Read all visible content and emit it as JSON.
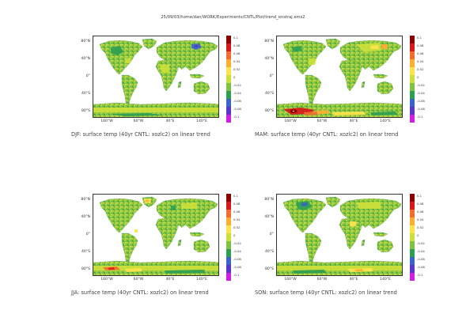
{
  "header": "25/09/03/home/dan/WORK/Experiments/CNTL/Plot/trend_onstraj.ems2",
  "y_ticks": [
    "80°N",
    "40°N",
    "0°",
    "40°S",
    "80°S"
  ],
  "x_ticks": [
    "160°W",
    "60°W",
    "40°E",
    "140°E"
  ],
  "colorbar": {
    "labels": [
      "0.1",
      "0.08",
      "0.06",
      "0.04",
      "0.02",
      "0",
      "-0.02",
      "-0.04",
      "-0.06",
      "-0.08",
      "-0.1"
    ],
    "colors": [
      "#8b0000",
      "#d7191c",
      "#f46d2e",
      "#fdae33",
      "#ffe34d",
      "#ccdf3a",
      "#7fc241",
      "#2e9f52",
      "#3a64c8",
      "#5a35c9",
      "#d11fe0"
    ]
  },
  "colors": {
    "land_dominant": "#7fc241",
    "land_light": "#ccdf3a",
    "ocean": "#ffffff"
  },
  "chart_data": [
    {
      "type": "heatmap",
      "caption": "DJF: surface temp (40yr CNTL: xozlc2) on linear trend",
      "units": "",
      "range": [
        -0.1,
        0.1
      ],
      "dominant_values": [
        0,
        -0.02
      ],
      "notable": "cooling (-0.04 to -0.06) over northern Eurasia and western Canada"
    },
    {
      "type": "heatmap",
      "caption": "MAM: surface temp (40yr CNTL: xozlc2) on linear trend",
      "units": "",
      "range": [
        -0.1,
        0.1
      ],
      "dominant_values": [
        0,
        -0.02
      ],
      "notable": "strong warming (0.04 to 0.1) over western Antarctica"
    },
    {
      "type": "heatmap",
      "caption": "JJA: surface temp (40yr CNTL: xozlc2) on linear trend",
      "units": "",
      "range": [
        -0.1,
        0.1
      ],
      "dominant_values": [
        0,
        -0.02
      ],
      "notable": "warming (0.04 to 0.06) over Greenland and Antarctic coast"
    },
    {
      "type": "heatmap",
      "caption": "SON: surface temp (40yr CNTL: xozlc2) on linear trend",
      "units": "",
      "range": [
        -0.1,
        0.1
      ],
      "dominant_values": [
        0,
        -0.02
      ],
      "notable": "mild warming (0.02 to 0.04) over east Antarctica, cooling in western Canada"
    }
  ]
}
